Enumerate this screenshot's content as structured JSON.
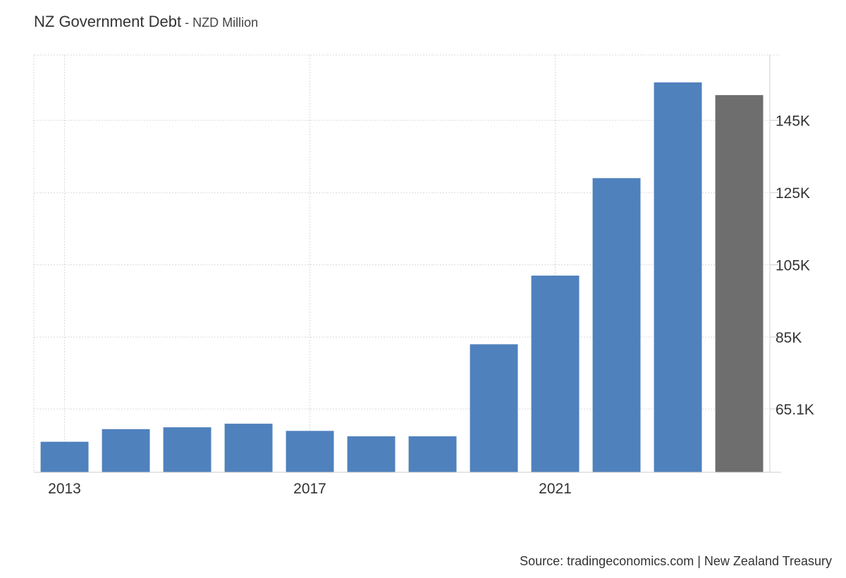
{
  "header": {
    "title": "NZ Government Debt",
    "separator": " - ",
    "subtitle": "NZD Million"
  },
  "footer": {
    "source": "Source: tradingeconomics.com | New Zealand Treasury"
  },
  "colors": {
    "bar": "#4f81bd",
    "forecast_bar": "#6e6e6e",
    "grid": "#d9d9d9",
    "axis": "#cccccc"
  },
  "chart_data": {
    "type": "bar",
    "categories": [
      "2013",
      "2014",
      "2015",
      "2016",
      "2017",
      "2018",
      "2019",
      "2020",
      "2021",
      "2022",
      "2023",
      "2024"
    ],
    "values": [
      56,
      59.5,
      60,
      61,
      59,
      57.5,
      57.5,
      83,
      102,
      129,
      155.5,
      152
    ],
    "forecast_index": 11,
    "x_tick_labels": [
      "2013",
      "2017",
      "2021"
    ],
    "y_ticks": [
      {
        "value": 65.1,
        "label": "65.1K"
      },
      {
        "value": 85,
        "label": "85K"
      },
      {
        "value": 105,
        "label": "105K"
      },
      {
        "value": 125,
        "label": "125K"
      },
      {
        "value": 145,
        "label": "145K"
      }
    ],
    "ylim": [
      47.55,
      163.1
    ],
    "y_axis_position": "right",
    "grid": true
  }
}
